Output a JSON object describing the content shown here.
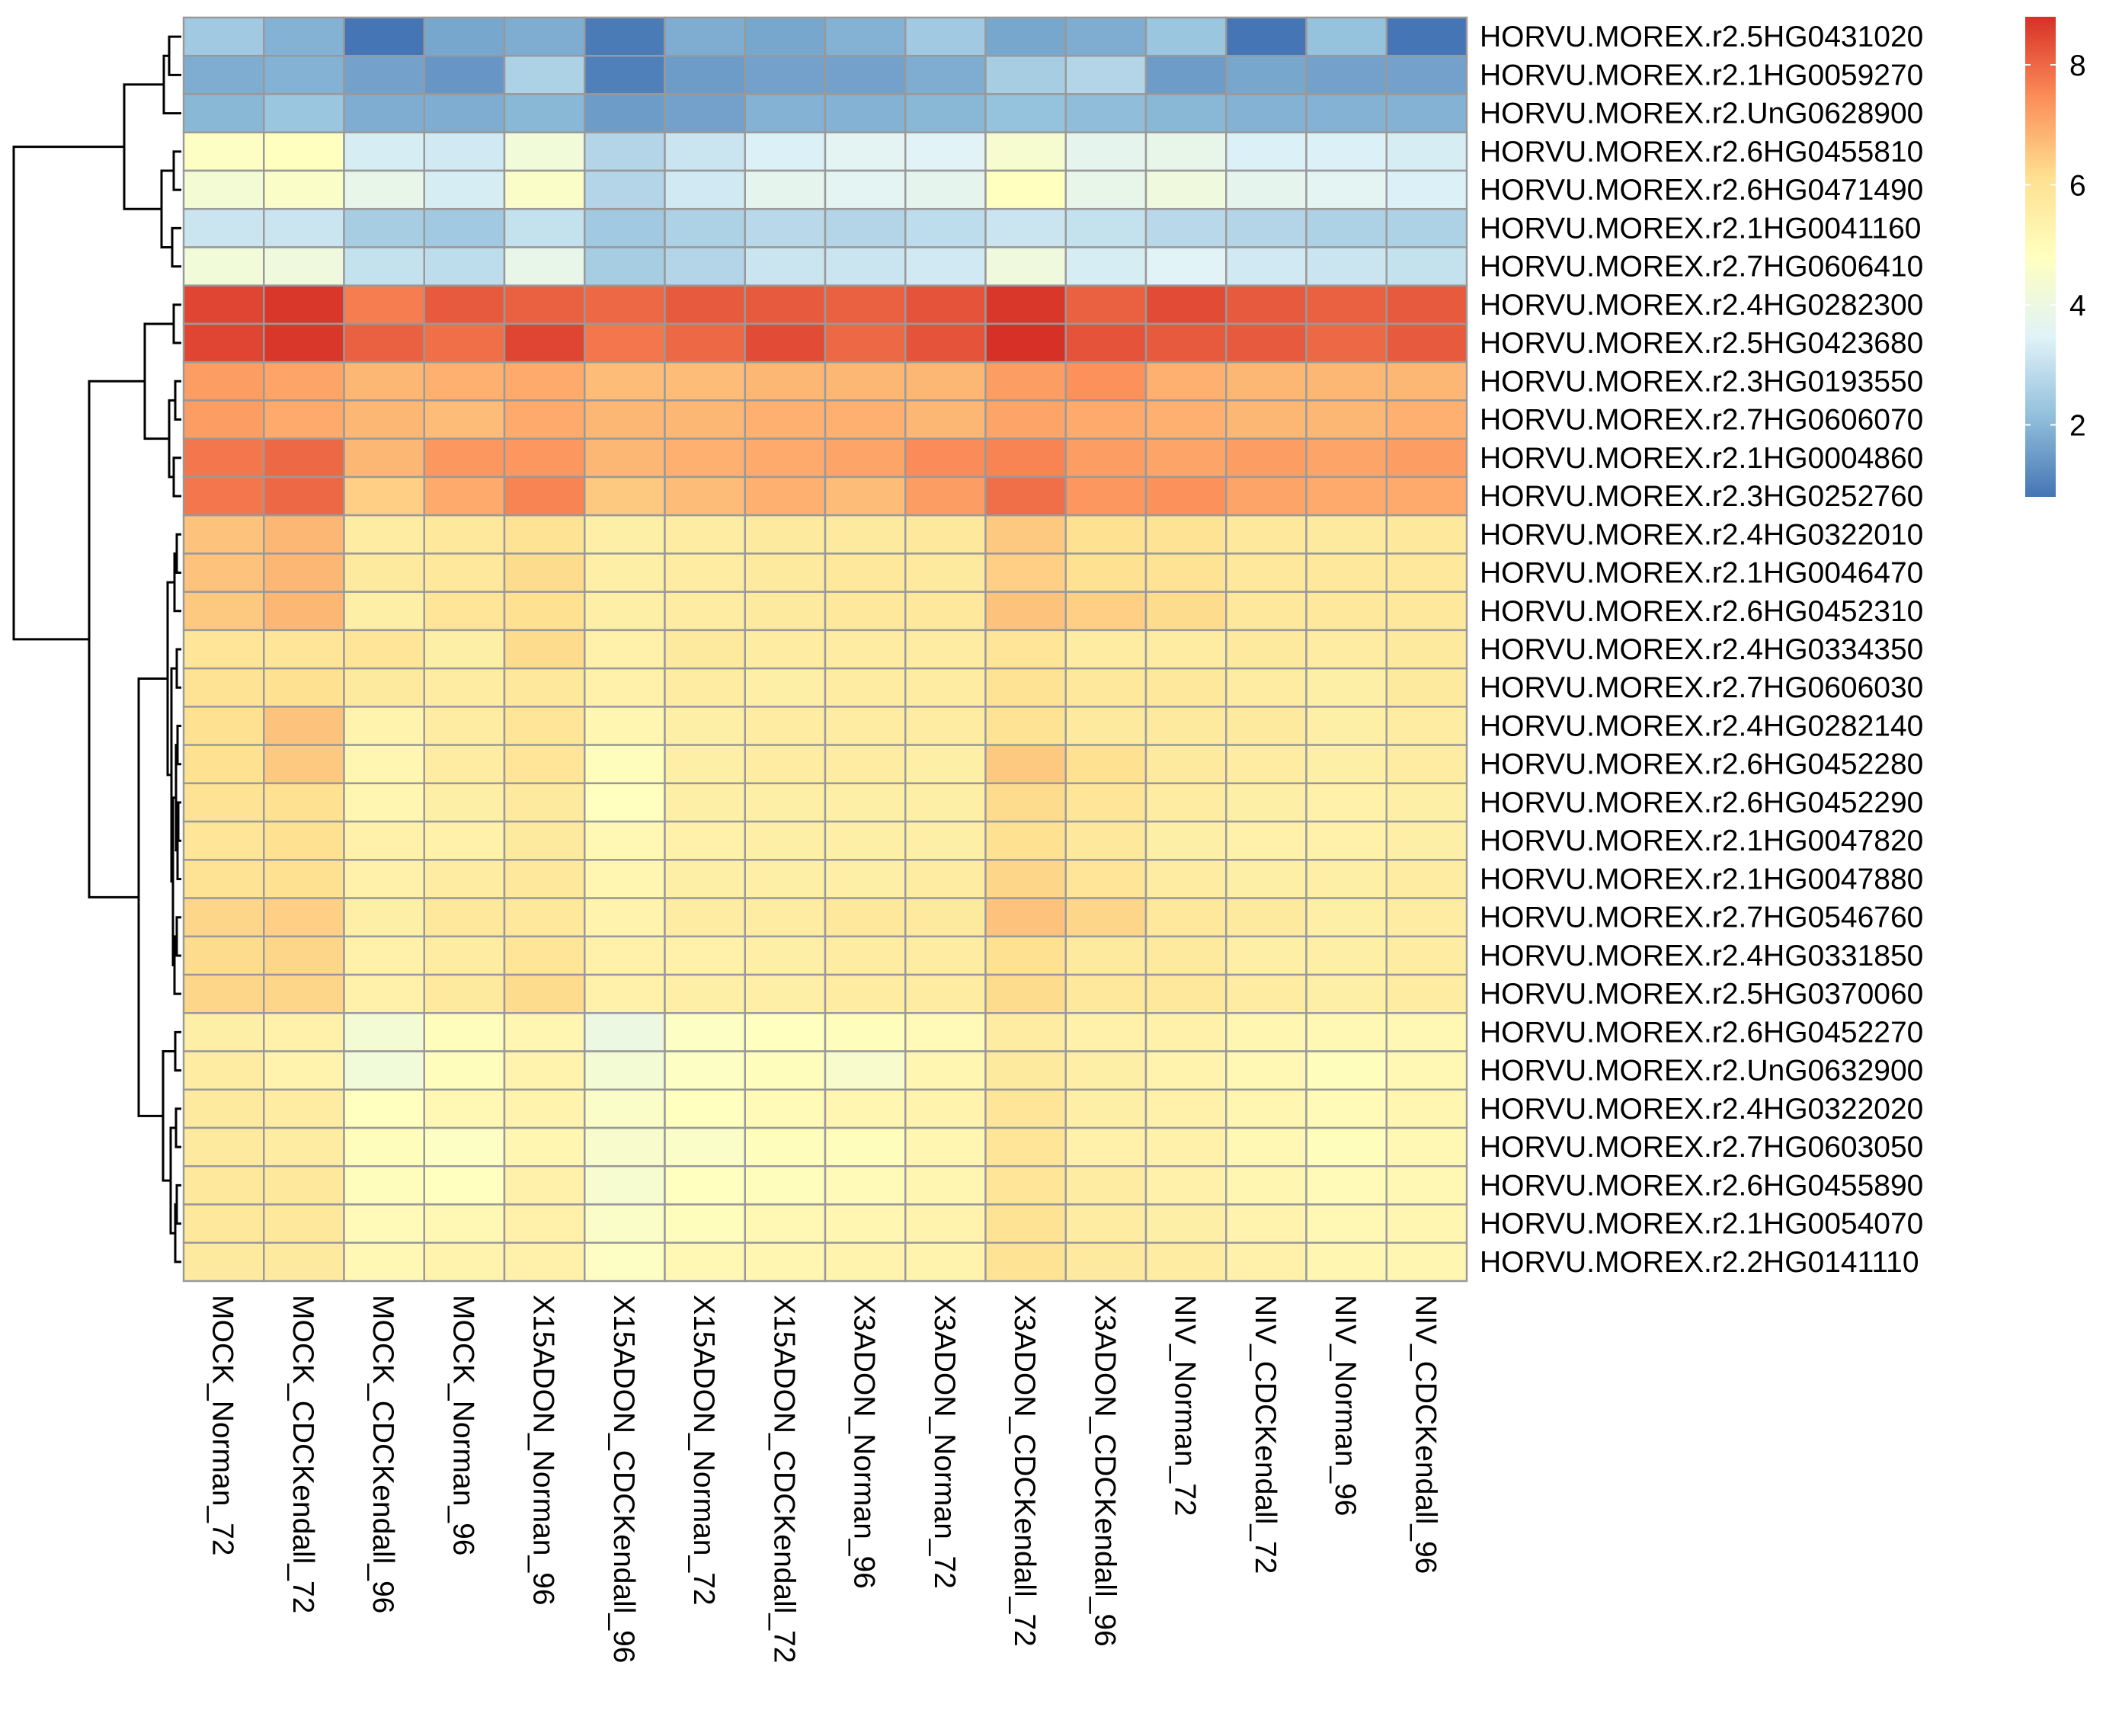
{
  "chart_data": {
    "type": "heatmap",
    "title": "",
    "xlabel": "",
    "ylabel": "",
    "columns": [
      "MOCK_Norman_72",
      "MOCK_CDCKendall_72",
      "MOCK_CDCKendall_96",
      "MOCK_Norman_96",
      "X15ADON_Norman_96",
      "X15ADON_CDCKendall_96",
      "X15ADON_Norman_72",
      "X15ADON_CDCKendall_72",
      "X3ADON_Norman_96",
      "X3ADON_Norman_72",
      "X3ADON_CDCKendall_72",
      "X3ADON_CDCKendall_96",
      "NIV_Norman_72",
      "NIV_CDCKendall_72",
      "NIV_Norman_96",
      "NIV_CDCKendall_96"
    ],
    "rows": [
      "HORVU.MOREX.r2.5HG0431020",
      "HORVU.MOREX.r2.1HG0059270",
      "HORVU.MOREX.r2.UnG0628900",
      "HORVU.MOREX.r2.6HG0455810",
      "HORVU.MOREX.r2.6HG0471490",
      "HORVU.MOREX.r2.1HG0041160",
      "HORVU.MOREX.r2.7HG0606410",
      "HORVU.MOREX.r2.4HG0282300",
      "HORVU.MOREX.r2.5HG0423680",
      "HORVU.MOREX.r2.3HG0193550",
      "HORVU.MOREX.r2.7HG0606070",
      "HORVU.MOREX.r2.1HG0004860",
      "HORVU.MOREX.r2.3HG0252760",
      "HORVU.MOREX.r2.4HG0322010",
      "HORVU.MOREX.r2.1HG0046470",
      "HORVU.MOREX.r2.6HG0452310",
      "HORVU.MOREX.r2.4HG0334350",
      "HORVU.MOREX.r2.7HG0606030",
      "HORVU.MOREX.r2.4HG0282140",
      "HORVU.MOREX.r2.6HG0452280",
      "HORVU.MOREX.r2.6HG0452290",
      "HORVU.MOREX.r2.1HG0047820",
      "HORVU.MOREX.r2.1HG0047880",
      "HORVU.MOREX.r2.7HG0546760",
      "HORVU.MOREX.r2.4HG0331850",
      "HORVU.MOREX.r2.5HG0370060",
      "HORVU.MOREX.r2.6HG0452270",
      "HORVU.MOREX.r2.UnG0632900",
      "HORVU.MOREX.r2.4HG0322020",
      "HORVU.MOREX.r2.7HG0603050",
      "HORVU.MOREX.r2.6HG0455890",
      "HORVU.MOREX.r2.1HG0054070",
      "HORVU.MOREX.r2.2HG0141110"
    ],
    "values": [
      [
        2.4,
        1.9,
        0.8,
        1.7,
        1.8,
        0.9,
        1.8,
        1.7,
        1.9,
        2.4,
        1.7,
        1.8,
        2.3,
        0.8,
        2.2,
        0.8
      ],
      [
        1.8,
        1.9,
        1.6,
        1.4,
        2.6,
        1.0,
        1.5,
        1.6,
        1.6,
        1.8,
        2.5,
        2.7,
        1.5,
        1.7,
        1.6,
        1.6
      ],
      [
        2.0,
        2.3,
        1.8,
        1.8,
        2.0,
        1.5,
        1.6,
        1.9,
        1.9,
        2.0,
        2.2,
        2.1,
        2.0,
        1.9,
        1.9,
        1.9
      ],
      [
        4.7,
        4.8,
        3.3,
        3.2,
        4.2,
        2.7,
        3.1,
        3.4,
        3.6,
        3.5,
        4.4,
        3.7,
        3.8,
        3.4,
        3.4,
        3.3
      ],
      [
        4.3,
        4.6,
        3.8,
        3.3,
        4.6,
        2.7,
        3.2,
        3.7,
        3.6,
        3.7,
        4.8,
        3.8,
        4.1,
        3.7,
        3.6,
        3.4
      ],
      [
        3.1,
        3.1,
        2.5,
        2.4,
        3.0,
        2.4,
        2.6,
        2.8,
        2.7,
        2.9,
        3.1,
        3.0,
        2.8,
        2.7,
        2.6,
        2.6
      ],
      [
        4.2,
        4.1,
        3.0,
        2.9,
        3.8,
        2.5,
        2.7,
        3.1,
        3.1,
        3.2,
        4.1,
        3.3,
        3.5,
        3.2,
        3.1,
        3.0
      ],
      [
        8.5,
        8.7,
        7.7,
        8.2,
        8.1,
        8.0,
        8.2,
        8.2,
        8.1,
        8.3,
        8.7,
        8.1,
        8.4,
        8.2,
        8.1,
        8.2
      ],
      [
        8.5,
        8.7,
        8.1,
        7.9,
        8.5,
        7.8,
        8.0,
        8.4,
        8.0,
        8.3,
        8.8,
        8.3,
        8.2,
        8.2,
        8.0,
        8.2
      ],
      [
        7.2,
        7.1,
        6.8,
        6.9,
        7.0,
        6.7,
        6.7,
        6.8,
        6.8,
        6.8,
        7.2,
        7.4,
        6.9,
        6.8,
        6.8,
        6.8
      ],
      [
        7.2,
        7.0,
        6.8,
        6.7,
        7.0,
        6.8,
        6.8,
        6.9,
        6.9,
        6.8,
        7.1,
        7.0,
        6.9,
        6.8,
        6.8,
        6.9
      ],
      [
        7.8,
        8.0,
        6.8,
        7.3,
        7.3,
        6.8,
        6.9,
        7.0,
        7.1,
        7.5,
        7.6,
        7.2,
        7.1,
        7.2,
        7.1,
        7.2
      ],
      [
        7.8,
        8.0,
        6.4,
        7.0,
        7.6,
        6.5,
        6.7,
        6.9,
        6.7,
        7.2,
        7.9,
        7.3,
        7.4,
        7.1,
        7.0,
        7.0
      ],
      [
        6.6,
        6.8,
        5.6,
        5.8,
        6.0,
        5.5,
        5.6,
        5.7,
        5.7,
        5.8,
        6.5,
        6.1,
        6.0,
        5.8,
        5.7,
        5.8
      ],
      [
        6.6,
        6.8,
        5.7,
        5.8,
        6.2,
        5.5,
        5.6,
        5.7,
        5.8,
        5.7,
        6.4,
        6.1,
        6.0,
        5.8,
        5.8,
        5.8
      ],
      [
        6.5,
        6.8,
        5.5,
        5.9,
        6.1,
        5.5,
        5.6,
        5.7,
        5.8,
        5.8,
        6.6,
        6.4,
        6.2,
        5.8,
        5.8,
        5.8
      ],
      [
        5.9,
        5.9,
        5.9,
        5.5,
        6.2,
        5.4,
        5.7,
        5.6,
        5.6,
        5.6,
        5.9,
        5.6,
        5.6,
        5.7,
        5.6,
        5.7
      ],
      [
        6.0,
        6.1,
        5.7,
        5.6,
        5.8,
        5.4,
        5.6,
        5.5,
        5.6,
        5.6,
        6.0,
        5.8,
        5.8,
        5.6,
        5.5,
        5.7
      ],
      [
        6.1,
        6.6,
        5.3,
        5.6,
        5.9,
        5.2,
        5.5,
        5.6,
        5.6,
        5.6,
        6.0,
        5.7,
        5.7,
        5.7,
        5.5,
        5.6
      ],
      [
        6.1,
        6.5,
        5.2,
        5.6,
        5.9,
        4.9,
        5.5,
        5.6,
        5.6,
        5.5,
        6.5,
        6.1,
        5.7,
        5.6,
        5.5,
        5.6
      ],
      [
        6.0,
        6.1,
        5.2,
        5.5,
        5.7,
        4.8,
        5.5,
        5.5,
        5.5,
        5.5,
        6.2,
        5.9,
        5.6,
        5.5,
        5.4,
        5.5
      ],
      [
        5.9,
        6.1,
        5.4,
        5.4,
        5.7,
        5.1,
        5.4,
        5.5,
        5.5,
        5.5,
        6.1,
        5.8,
        5.5,
        5.4,
        5.4,
        5.5
      ],
      [
        6.0,
        6.1,
        5.4,
        5.6,
        5.8,
        5.2,
        5.5,
        5.5,
        5.5,
        5.6,
        6.3,
        5.9,
        5.6,
        5.5,
        5.5,
        5.6
      ],
      [
        6.3,
        6.4,
        5.5,
        5.8,
        5.8,
        5.3,
        5.6,
        5.6,
        5.8,
        5.7,
        6.6,
        6.3,
        5.8,
        5.7,
        5.5,
        5.6
      ],
      [
        6.2,
        6.3,
        5.4,
        5.6,
        5.9,
        5.4,
        5.4,
        5.5,
        5.6,
        5.6,
        6.1,
        5.7,
        5.7,
        5.5,
        5.5,
        5.6
      ],
      [
        6.3,
        6.3,
        5.4,
        5.7,
        6.2,
        5.4,
        5.5,
        5.5,
        5.6,
        5.6,
        6.2,
        5.8,
        5.8,
        5.6,
        5.5,
        5.6
      ],
      [
        5.5,
        5.4,
        4.3,
        4.9,
        5.2,
        4.0,
        4.7,
        4.8,
        4.9,
        5.0,
        5.6,
        5.4,
        5.4,
        5.2,
        5.1,
        5.1
      ],
      [
        5.6,
        5.3,
        4.2,
        4.9,
        5.3,
        4.3,
        4.7,
        4.9,
        4.5,
        5.2,
        5.7,
        5.5,
        5.3,
        5.1,
        4.9,
        5.1
      ],
      [
        5.7,
        5.6,
        4.8,
        5.1,
        5.3,
        4.6,
        4.8,
        5.0,
        5.2,
        5.3,
        5.9,
        5.5,
        5.4,
        5.2,
        5.0,
        5.2
      ],
      [
        5.7,
        5.6,
        4.9,
        4.7,
        5.2,
        4.5,
        4.6,
        4.9,
        4.9,
        5.2,
        5.9,
        5.4,
        5.4,
        5.1,
        4.9,
        5.1
      ],
      [
        5.8,
        5.8,
        4.9,
        4.8,
        5.4,
        4.4,
        4.8,
        4.9,
        5.0,
        5.2,
        5.9,
        5.6,
        5.4,
        5.2,
        5.0,
        5.1
      ],
      [
        5.8,
        5.8,
        5.0,
        5.1,
        5.4,
        4.6,
        4.9,
        5.1,
        5.2,
        5.3,
        6.0,
        5.6,
        5.5,
        5.3,
        5.1,
        5.2
      ],
      [
        5.7,
        5.7,
        5.1,
        5.3,
        5.4,
        4.7,
        5.1,
        5.2,
        5.3,
        5.3,
        6.0,
        5.7,
        5.6,
        5.4,
        5.2,
        5.2
      ]
    ],
    "colorscale": {
      "min": 0.8,
      "max": 8.8,
      "ticks": [
        2,
        4,
        6,
        8
      ],
      "colors": [
        "#4575B4",
        "#91BFDB",
        "#E0F3F8",
        "#FFFFBF",
        "#FEE090",
        "#FC8D59",
        "#D73027"
      ]
    },
    "grid_color": "#999999",
    "dendrogram": "rows",
    "legend_placement": "top-right"
  }
}
